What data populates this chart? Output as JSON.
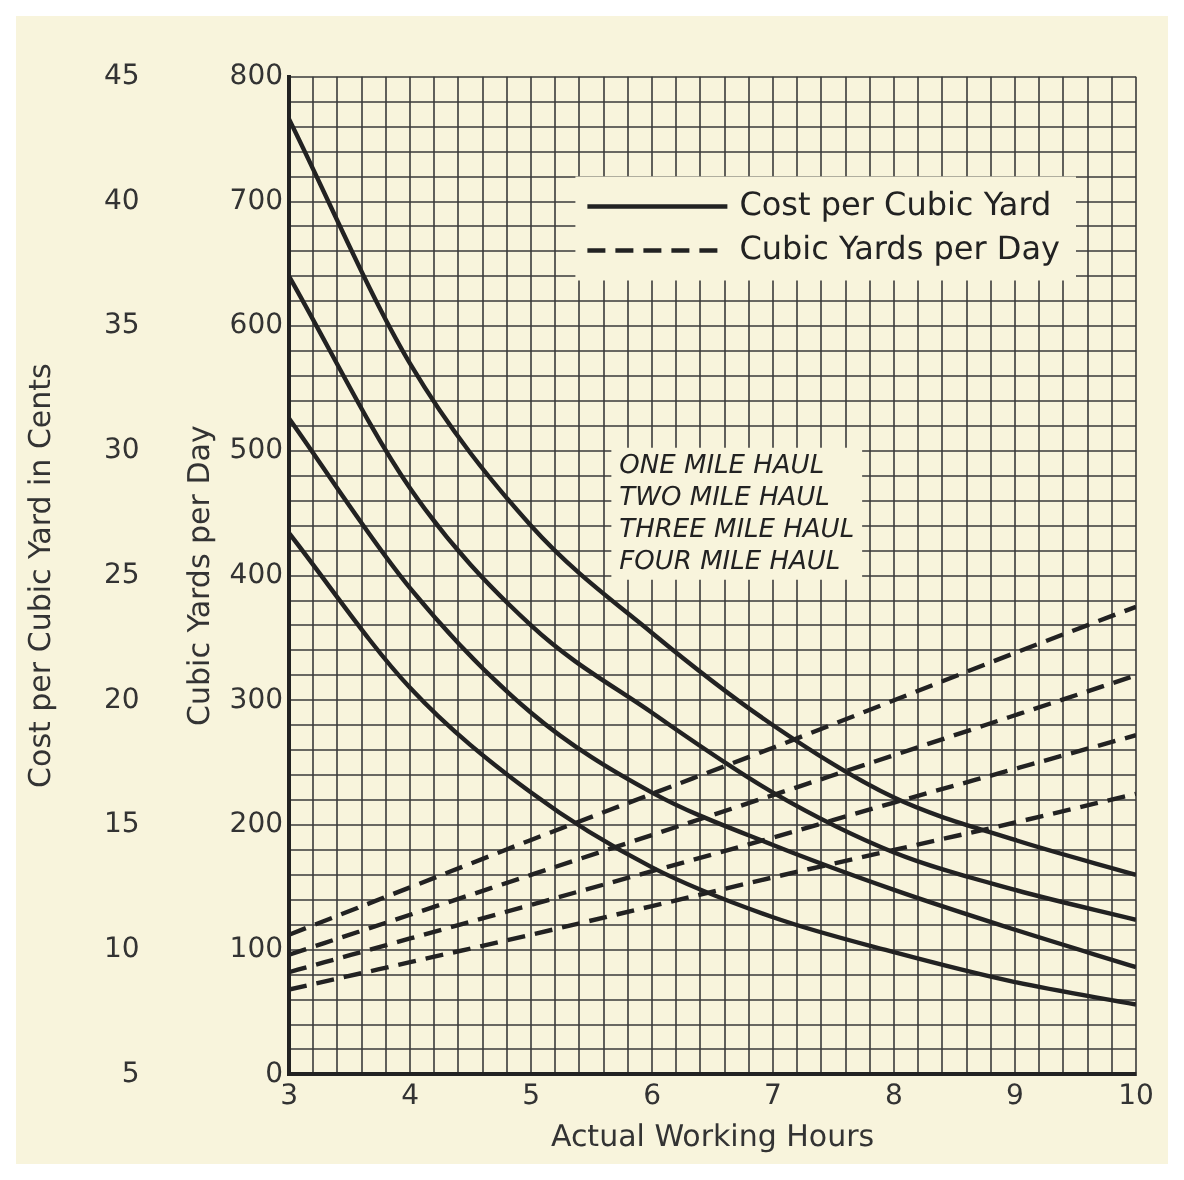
{
  "chart_data": {
    "type": "line",
    "xlabel": "Actual Working Hours",
    "ylabel": "Cubic Yards per Day",
    "y2label": "Cost per Cubic Yard in Cents",
    "x": [
      3,
      4,
      5,
      6,
      7,
      8,
      9,
      10
    ],
    "xlim": [
      3,
      10
    ],
    "xticks": [
      3,
      {
        "value": 3.2,
        "label": null
      },
      {
        "value": 3.4,
        "label": null
      },
      {
        "value": 3.6,
        "label": null
      },
      {
        "value": 3.8,
        "label": null
      },
      4,
      {
        "value": 4.2,
        "label": null
      },
      {
        "value": 4.4,
        "label": null
      },
      {
        "value": 4.6,
        "label": null
      },
      {
        "value": 4.8,
        "label": null
      },
      5,
      {
        "value": 5.2,
        "label": null
      },
      {
        "value": 5.4,
        "label": null
      },
      {
        "value": 5.6,
        "label": null
      },
      {
        "value": 5.8,
        "label": null
      },
      6,
      {
        "value": 6.2,
        "label": null
      },
      {
        "value": 6.4,
        "label": null
      },
      {
        "value": 6.6,
        "label": null
      },
      {
        "value": 6.8,
        "label": null
      },
      7,
      {
        "value": 7.2,
        "label": null
      },
      {
        "value": 7.4,
        "label": null
      },
      {
        "value": 7.6,
        "label": null
      },
      {
        "value": 7.8,
        "label": null
      },
      8,
      {
        "value": 8.2,
        "label": null
      },
      {
        "value": 8.4,
        "label": null
      },
      {
        "value": 8.6,
        "label": null
      },
      {
        "value": 8.8,
        "label": null
      },
      9,
      {
        "value": 9.2,
        "label": null
      },
      {
        "value": 9.4,
        "label": null
      },
      {
        "value": 9.6,
        "label": null
      },
      {
        "value": 9.8,
        "label": null
      },
      10
    ],
    "y2lim": [
      5,
      45
    ],
    "y2ticks": [
      5,
      10,
      15,
      20,
      25,
      30,
      35,
      40,
      45
    ],
    "ylim": [
      0,
      800
    ],
    "yticks": [
      0,
      {
        "value": 20,
        "label": null
      },
      {
        "value": 40,
        "label": null
      },
      {
        "value": 60,
        "label": null
      },
      {
        "value": 80,
        "label": null
      },
      100,
      {
        "value": 120,
        "label": null
      },
      {
        "value": 140,
        "label": null
      },
      {
        "value": 160,
        "label": null
      },
      {
        "value": 180,
        "label": null
      },
      200,
      {
        "value": 220,
        "label": null
      },
      {
        "value": 240,
        "label": null
      },
      {
        "value": 260,
        "label": null
      },
      {
        "value": 280,
        "label": null
      },
      300,
      {
        "value": 320,
        "label": null
      },
      {
        "value": 340,
        "label": null
      },
      {
        "value": 360,
        "label": null
      },
      {
        "value": 380,
        "label": null
      },
      400,
      {
        "value": 420,
        "label": null
      },
      {
        "value": 440,
        "label": null
      },
      {
        "value": 460,
        "label": null
      },
      {
        "value": 480,
        "label": null
      },
      500,
      {
        "value": 520,
        "label": null
      },
      {
        "value": 540,
        "label": null
      },
      {
        "value": 560,
        "label": null
      },
      {
        "value": 580,
        "label": null
      },
      600,
      {
        "value": 620,
        "label": null
      },
      {
        "value": 640,
        "label": null
      },
      {
        "value": 660,
        "label": null
      },
      {
        "value": 680,
        "label": null
      },
      700,
      {
        "value": 720,
        "label": null
      },
      {
        "value": 740,
        "label": null
      },
      {
        "value": 760,
        "label": null
      },
      {
        "value": 780,
        "label": null
      },
      800
    ],
    "grid": true,
    "legend": "top right",
    "marker": "none",
    "annotations": [
      "ONE MILE HAUL",
      "TWO MILE HAUL",
      "THREE MILE HAUL",
      "FOUR MILE HAUL"
    ],
    "series": [
      {
        "name": "Cost per Cubic Yard",
        "color": "#222222",
        "line_style": "solid",
        "axis": "y2",
        "values": [
          43.3,
          33.5,
          27,
          22.7,
          19,
          16.1,
          14.4,
          13
        ]
      },
      {
        "color": "#222222",
        "line_style": "solid",
        "axis": "y2",
        "values": [
          37,
          28.5,
          23,
          19.5,
          16.3,
          13.9,
          12.4,
          11.2
        ]
      },
      {
        "color": "#222222",
        "line_style": "solid",
        "axis": "y2",
        "values": [
          31.3,
          24.5,
          19.5,
          16.3,
          14.2,
          12.4,
          10.8,
          9.3
        ]
      },
      {
        "color": "#222222",
        "line_style": "solid",
        "axis": "y2",
        "values": [
          26.7,
          20.5,
          16.3,
          13.3,
          11.3,
          9.9,
          8.7,
          7.8
        ]
      },
      {
        "name": "Cubic Yards per Day",
        "color": "#222222",
        "line_style": "dashed",
        "values": [
          112,
          150,
          188,
          225,
          262,
          300,
          338,
          375
        ]
      },
      {
        "color": "#222222",
        "line_style": "dashed",
        "values": [
          96,
          128,
          160,
          192,
          224,
          256,
          288,
          320
        ]
      },
      {
        "color": "#222222",
        "line_style": "dashed",
        "values": [
          82,
          109,
          136,
          163,
          190,
          218,
          245,
          272
        ]
      },
      {
        "color": "#222222",
        "line_style": "dashed",
        "values": [
          68,
          90,
          112,
          135,
          158,
          180,
          202,
          225
        ]
      }
    ]
  }
}
